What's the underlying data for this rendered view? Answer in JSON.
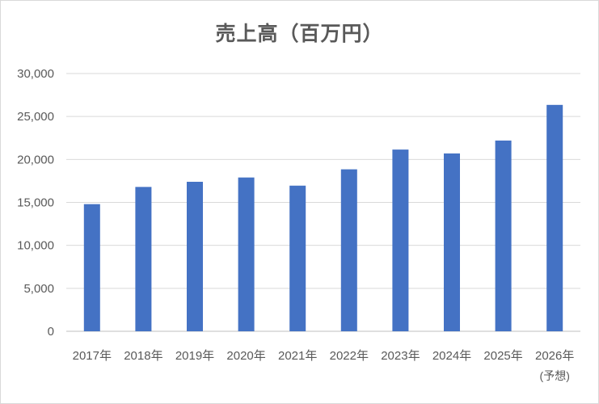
{
  "chart_data": {
    "type": "bar",
    "title": "売上高（百万円）",
    "categories": [
      "2017年",
      "2018年",
      "2019年",
      "2020年",
      "2021年",
      "2022年",
      "2023年",
      "2024年",
      "2025年",
      "2026年"
    ],
    "category_notes": [
      "",
      "",
      "",
      "",
      "",
      "",
      "",
      "",
      "",
      "(予想)"
    ],
    "values": [
      14800,
      16800,
      17400,
      17900,
      16950,
      18850,
      21150,
      20700,
      22200,
      26350
    ],
    "yticks": [
      "0",
      "5,000",
      "10,000",
      "15,000",
      "20,000",
      "25,000",
      "30,000"
    ],
    "ylim": [
      0,
      30000
    ],
    "grid": true,
    "colors": {
      "bar": "#4472c4",
      "grid": "#d9d9d9",
      "text": "#595959"
    }
  }
}
